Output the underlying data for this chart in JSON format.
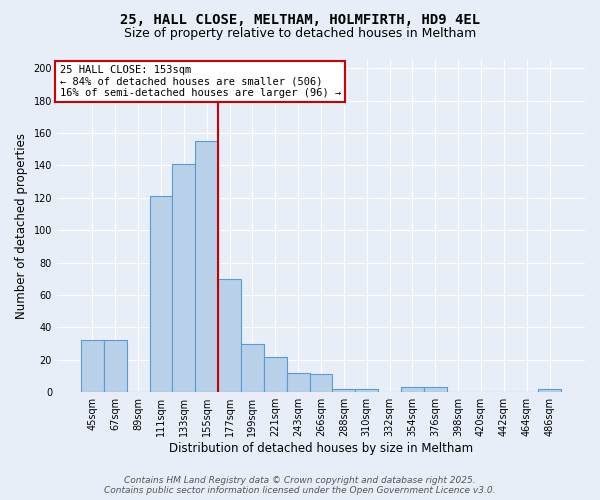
{
  "title1": "25, HALL CLOSE, MELTHAM, HOLMFIRTH, HD9 4EL",
  "title2": "Size of property relative to detached houses in Meltham",
  "xlabel": "Distribution of detached houses by size in Meltham",
  "ylabel": "Number of detached properties",
  "categories": [
    "45sqm",
    "67sqm",
    "89sqm",
    "111sqm",
    "133sqm",
    "155sqm",
    "177sqm",
    "199sqm",
    "221sqm",
    "243sqm",
    "266sqm",
    "288sqm",
    "310sqm",
    "332sqm",
    "354sqm",
    "376sqm",
    "398sqm",
    "420sqm",
    "442sqm",
    "464sqm",
    "486sqm"
  ],
  "values": [
    32,
    32,
    0,
    121,
    141,
    155,
    70,
    30,
    22,
    12,
    11,
    2,
    2,
    0,
    3,
    3,
    0,
    0,
    0,
    0,
    2
  ],
  "bar_color": "#b8d0e8",
  "bar_edge_color": "#5b9bd5",
  "bar_width": 1.0,
  "vline_x_index": 5,
  "vline_color": "#cc0000",
  "annotation_text": "25 HALL CLOSE: 153sqm\n← 84% of detached houses are smaller (506)\n16% of semi-detached houses are larger (96) →",
  "annotation_box_color": "#ffffff",
  "annotation_box_edge": "#cc0000",
  "ylim": [
    0,
    205
  ],
  "yticks": [
    0,
    20,
    40,
    60,
    80,
    100,
    120,
    140,
    160,
    180,
    200
  ],
  "background_color": "#e8eef8",
  "grid_color": "#ffffff",
  "footer1": "Contains HM Land Registry data © Crown copyright and database right 2025.",
  "footer2": "Contains public sector information licensed under the Open Government Licence v3.0.",
  "title_fontsize": 10,
  "subtitle_fontsize": 9,
  "tick_fontsize": 7,
  "xlabel_fontsize": 8.5,
  "ylabel_fontsize": 8.5,
  "annotation_fontsize": 7.5,
  "footer_fontsize": 6.5
}
